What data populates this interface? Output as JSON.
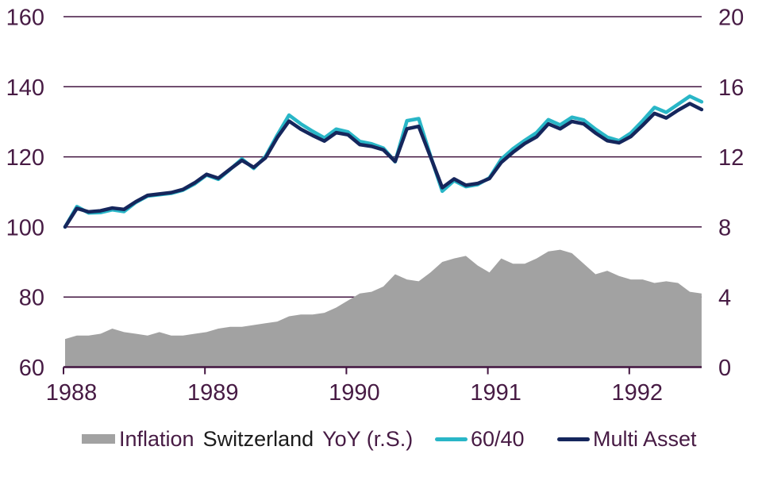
{
  "colors": {
    "plum_text": "#471b44",
    "grid_line": "#421540",
    "axis_line": "#421540",
    "dark_text": "#1c1c1c",
    "area_gray": "#a2a2a2",
    "cyan": "#29b6c7",
    "navy": "#15265c",
    "background": "#ffffff"
  },
  "legend": {
    "inflation_part1": "Inflation",
    "inflation_part2": "Switzerland",
    "inflation_part3": "YoY (r.S.)",
    "line1_label": "60/40",
    "line2_label": "Multi Asset"
  },
  "chart_data": {
    "type": "combo",
    "x_unit": "month",
    "x_start": "1988-01",
    "x_end": "1992-07",
    "x_ticks": [
      "1988",
      "1989",
      "1990",
      "1991",
      "1992"
    ],
    "left_axis": {
      "min": 60,
      "max": 160,
      "ticks": [
        160,
        140,
        120,
        100,
        80,
        60
      ]
    },
    "right_axis": {
      "min": 0,
      "max": 20,
      "ticks": [
        20,
        16,
        12,
        8,
        4,
        0
      ]
    },
    "grid": true,
    "legend_position": "bottom",
    "series": [
      {
        "name": "Inflation Switzerland YoY (r.S.)",
        "type": "area",
        "axis": "right",
        "color": "#a2a2a2",
        "values": [
          1.6,
          1.8,
          1.8,
          1.9,
          2.2,
          2.0,
          1.9,
          1.8,
          2.0,
          1.8,
          1.8,
          1.9,
          2.0,
          2.2,
          2.3,
          2.3,
          2.4,
          2.5,
          2.6,
          2.9,
          3.0,
          3.0,
          3.1,
          3.4,
          3.8,
          4.2,
          4.3,
          4.6,
          5.3,
          5.0,
          4.9,
          5.4,
          6.0,
          6.2,
          6.35,
          5.8,
          5.4,
          6.2,
          5.9,
          5.9,
          6.2,
          6.6,
          6.7,
          6.5,
          5.9,
          5.3,
          5.5,
          5.2,
          5.0,
          5.0,
          4.8,
          4.9,
          4.8,
          4.3,
          4.2
        ]
      },
      {
        "name": "60/40",
        "type": "line",
        "axis": "left",
        "color": "#29b6c7",
        "values": [
          100.0,
          105.8,
          104.0,
          104.1,
          104.9,
          104.4,
          107.0,
          108.8,
          109.2,
          109.6,
          110.5,
          112.3,
          114.8,
          113.6,
          116.4,
          119.4,
          116.7,
          120.1,
          126.2,
          131.9,
          129.4,
          127.3,
          125.4,
          127.9,
          127.1,
          124.4,
          123.7,
          122.5,
          118.6,
          130.3,
          130.9,
          120.3,
          110.2,
          113.2,
          111.5,
          112.1,
          114.0,
          119.3,
          122.3,
          124.7,
          126.9,
          130.6,
          129.1,
          131.3,
          130.5,
          127.9,
          125.6,
          124.6,
          126.8,
          130.3,
          134.1,
          132.7,
          135.0,
          137.3,
          135.7
        ]
      },
      {
        "name": "Multi Asset",
        "type": "line",
        "axis": "left",
        "color": "#15265c",
        "values": [
          100.0,
          105.3,
          104.3,
          104.6,
          105.4,
          105.0,
          107.2,
          109.0,
          109.4,
          109.8,
          110.7,
          112.6,
          115.0,
          113.9,
          116.5,
          119.0,
          117.0,
          119.7,
          125.5,
          130.2,
          127.9,
          126.1,
          124.5,
          126.9,
          126.3,
          123.5,
          123.0,
          122.0,
          118.7,
          128.0,
          128.7,
          120.0,
          111.2,
          113.7,
          111.9,
          112.4,
          113.8,
          118.4,
          121.3,
          123.8,
          125.7,
          129.4,
          128.0,
          130.1,
          129.4,
          126.8,
          124.6,
          124.0,
          125.8,
          129.0,
          132.4,
          131.1,
          133.3,
          135.2,
          133.5
        ]
      }
    ]
  }
}
